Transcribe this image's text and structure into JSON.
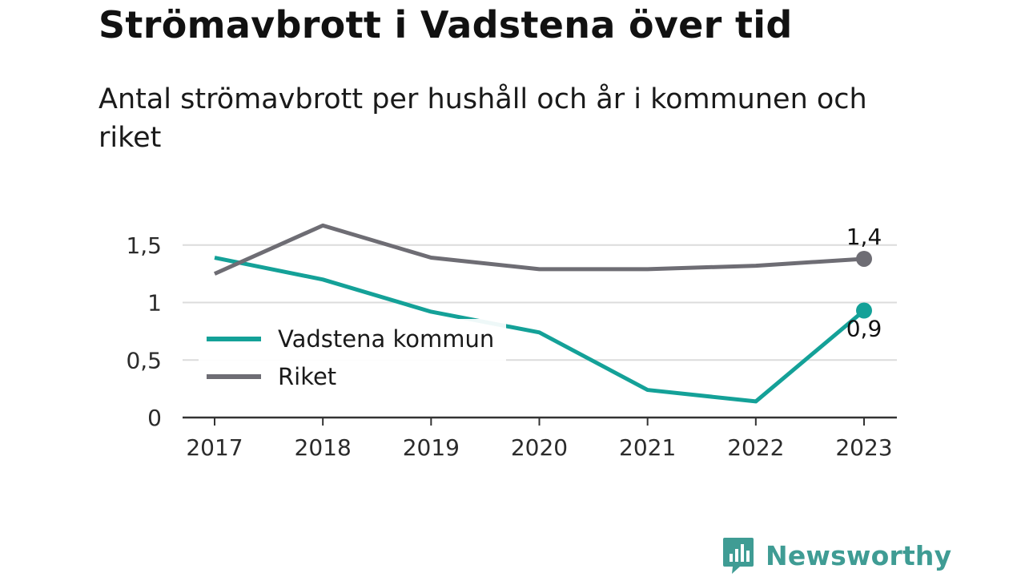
{
  "title": "Strömavbrott i Vadstena över tid",
  "subtitle": "Antal strömavbrott per hushåll och år i kommunen och riket",
  "brand": {
    "name": "Newsworthy",
    "icon": "newsworthy-logo-icon",
    "color": "#3f9c94"
  },
  "chart_data": {
    "type": "line",
    "x": [
      "2017",
      "2018",
      "2019",
      "2020",
      "2021",
      "2022",
      "2023"
    ],
    "series": [
      {
        "name": "Vadstena kommun",
        "color": "#14a198",
        "values": [
          1.39,
          1.2,
          0.92,
          0.74,
          0.24,
          0.14,
          0.93
        ]
      },
      {
        "name": "Riket",
        "color": "#6e6d74",
        "values": [
          1.25,
          1.67,
          1.39,
          1.29,
          1.29,
          1.32,
          1.38
        ]
      }
    ],
    "ylim": [
      0,
      1.6
    ],
    "yticks": [
      {
        "value": 0,
        "label": "0"
      },
      {
        "value": 0.5,
        "label": "0,5"
      },
      {
        "value": 1,
        "label": "1"
      },
      {
        "value": 1.5,
        "label": "1,5"
      }
    ],
    "end_labels": [
      {
        "series": "Riket",
        "label": "1,4",
        "position": "above"
      },
      {
        "series": "Vadstena kommun",
        "label": "0,9",
        "position": "below"
      }
    ],
    "legend": "left-middle",
    "grid": true,
    "xlabel": "",
    "ylabel": ""
  }
}
